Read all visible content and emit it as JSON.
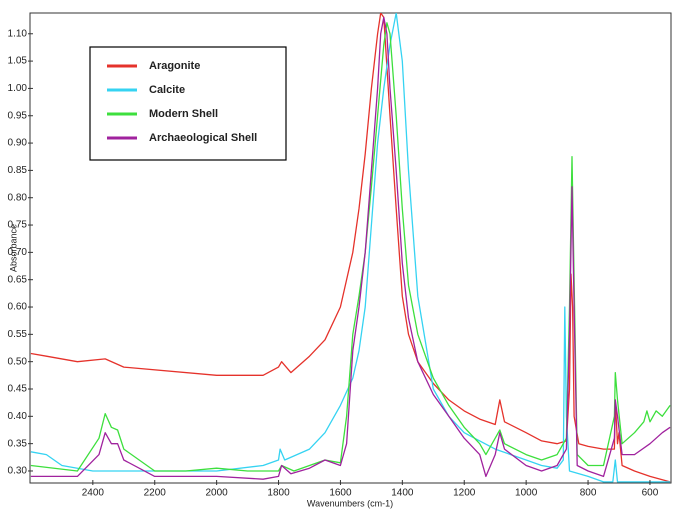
{
  "chart_data": {
    "type": "line",
    "x_label": "Wavenumbers (cm-1)",
    "y_label": "Absorbance",
    "xlim": [
      2603,
      532
    ],
    "ylim": [
      0.278,
      1.138
    ],
    "xticks": [
      2400,
      2200,
      2000,
      1800,
      1600,
      1400,
      1200,
      1000,
      800,
      600
    ],
    "yticks": [
      {
        "value": 0.3,
        "label": "0.30"
      },
      0.35,
      {
        "value": 0.4,
        "label": "0.40"
      },
      0.45,
      {
        "value": 0.5,
        "label": "0.50"
      },
      0.55,
      {
        "value": 0.6,
        "label": "0.60"
      },
      0.65,
      {
        "value": 0.7,
        "label": "0.70"
      },
      0.75,
      {
        "value": 0.8,
        "label": "0.80"
      },
      0.85,
      {
        "value": 0.9,
        "label": "0.90"
      },
      0.95,
      {
        "value": 1.0,
        "label": "1.00"
      },
      1.05,
      {
        "value": 1.1,
        "label": "1.10"
      }
    ],
    "grid": false,
    "legend": "upper left",
    "series": [
      {
        "name": "Aragonite",
        "color": "#e5322b",
        "x": [
          2600,
          2550,
          2450,
          2360,
          2300,
          2000,
          1850,
          1800,
          1790,
          1760,
          1700,
          1650,
          1600,
          1560,
          1540,
          1520,
          1500,
          1480,
          1470,
          1460,
          1440,
          1420,
          1400,
          1380,
          1350,
          1300,
          1250,
          1200,
          1150,
          1100,
          1085,
          1070,
          1000,
          950,
          900,
          870,
          860,
          855,
          850,
          845,
          830,
          800,
          750,
          715,
          712,
          705,
          700,
          690,
          650,
          600,
          535
        ],
        "values": [
          0.515,
          0.51,
          0.5,
          0.505,
          0.49,
          0.475,
          0.475,
          0.49,
          0.5,
          0.48,
          0.51,
          0.54,
          0.6,
          0.7,
          0.78,
          0.88,
          1.0,
          1.1,
          1.138,
          1.13,
          0.95,
          0.78,
          0.62,
          0.55,
          0.5,
          0.46,
          0.43,
          0.41,
          0.395,
          0.385,
          0.43,
          0.39,
          0.37,
          0.355,
          0.35,
          0.355,
          0.45,
          0.66,
          0.6,
          0.4,
          0.35,
          0.345,
          0.34,
          0.34,
          0.43,
          0.35,
          0.37,
          0.31,
          0.3,
          0.29,
          0.28
        ]
      },
      {
        "name": "Calcite",
        "color": "#35d3f2",
        "x": [
          2600,
          2550,
          2500,
          2400,
          2000,
          1850,
          1800,
          1795,
          1780,
          1700,
          1650,
          1600,
          1560,
          1540,
          1520,
          1500,
          1480,
          1460,
          1440,
          1420,
          1400,
          1380,
          1350,
          1300,
          1250,
          1200,
          1150,
          1100,
          1050,
          1000,
          950,
          900,
          880,
          875,
          870,
          860,
          800,
          750,
          720,
          712,
          705,
          650,
          535
        ],
        "values": [
          0.335,
          0.33,
          0.31,
          0.3,
          0.3,
          0.31,
          0.32,
          0.34,
          0.32,
          0.34,
          0.37,
          0.42,
          0.47,
          0.52,
          0.6,
          0.75,
          0.9,
          1.0,
          1.08,
          1.138,
          1.05,
          0.85,
          0.62,
          0.45,
          0.4,
          0.37,
          0.355,
          0.34,
          0.33,
          0.32,
          0.31,
          0.305,
          0.32,
          0.6,
          0.4,
          0.3,
          0.29,
          0.28,
          0.28,
          0.32,
          0.28,
          0.28,
          0.28
        ]
      },
      {
        "name": "Modern Shell",
        "color": "#3ddf3d",
        "x": [
          2600,
          2450,
          2380,
          2360,
          2340,
          2320,
          2300,
          2200,
          2100,
          2000,
          1900,
          1800,
          1790,
          1750,
          1700,
          1650,
          1600,
          1580,
          1560,
          1540,
          1520,
          1500,
          1480,
          1460,
          1450,
          1440,
          1420,
          1400,
          1380,
          1350,
          1300,
          1250,
          1200,
          1150,
          1130,
          1100,
          1085,
          1070,
          1000,
          950,
          900,
          870,
          860,
          852,
          845,
          835,
          800,
          750,
          715,
          712,
          705,
          690,
          650,
          620,
          610,
          600,
          580,
          560,
          535
        ],
        "values": [
          0.31,
          0.3,
          0.36,
          0.405,
          0.38,
          0.375,
          0.34,
          0.3,
          0.3,
          0.305,
          0.3,
          0.3,
          0.31,
          0.3,
          0.31,
          0.32,
          0.315,
          0.4,
          0.55,
          0.62,
          0.7,
          0.82,
          0.95,
          1.08,
          1.12,
          1.1,
          0.95,
          0.78,
          0.64,
          0.55,
          0.47,
          0.42,
          0.38,
          0.35,
          0.33,
          0.36,
          0.375,
          0.35,
          0.33,
          0.32,
          0.33,
          0.36,
          0.6,
          0.875,
          0.65,
          0.33,
          0.31,
          0.31,
          0.4,
          0.48,
          0.43,
          0.35,
          0.37,
          0.39,
          0.41,
          0.39,
          0.41,
          0.4,
          0.42
        ]
      },
      {
        "name": "Archaeological Shell",
        "color": "#a0229e",
        "x": [
          2600,
          2450,
          2380,
          2360,
          2340,
          2320,
          2300,
          2200,
          2000,
          1850,
          1800,
          1790,
          1760,
          1700,
          1650,
          1600,
          1580,
          1560,
          1540,
          1520,
          1500,
          1480,
          1470,
          1460,
          1450,
          1440,
          1420,
          1400,
          1380,
          1350,
          1300,
          1250,
          1200,
          1150,
          1130,
          1100,
          1085,
          1070,
          1000,
          950,
          900,
          870,
          860,
          852,
          845,
          835,
          800,
          750,
          715,
          712,
          705,
          690,
          650,
          600,
          560,
          535
        ],
        "values": [
          0.29,
          0.29,
          0.33,
          0.37,
          0.35,
          0.35,
          0.32,
          0.29,
          0.29,
          0.285,
          0.29,
          0.31,
          0.295,
          0.305,
          0.32,
          0.31,
          0.35,
          0.52,
          0.6,
          0.7,
          0.85,
          1.0,
          1.1,
          1.13,
          1.1,
          1.0,
          0.85,
          0.68,
          0.58,
          0.5,
          0.44,
          0.4,
          0.36,
          0.33,
          0.29,
          0.33,
          0.37,
          0.34,
          0.31,
          0.3,
          0.31,
          0.34,
          0.55,
          0.82,
          0.6,
          0.31,
          0.3,
          0.29,
          0.36,
          0.43,
          0.4,
          0.33,
          0.33,
          0.35,
          0.37,
          0.38
        ]
      }
    ]
  }
}
